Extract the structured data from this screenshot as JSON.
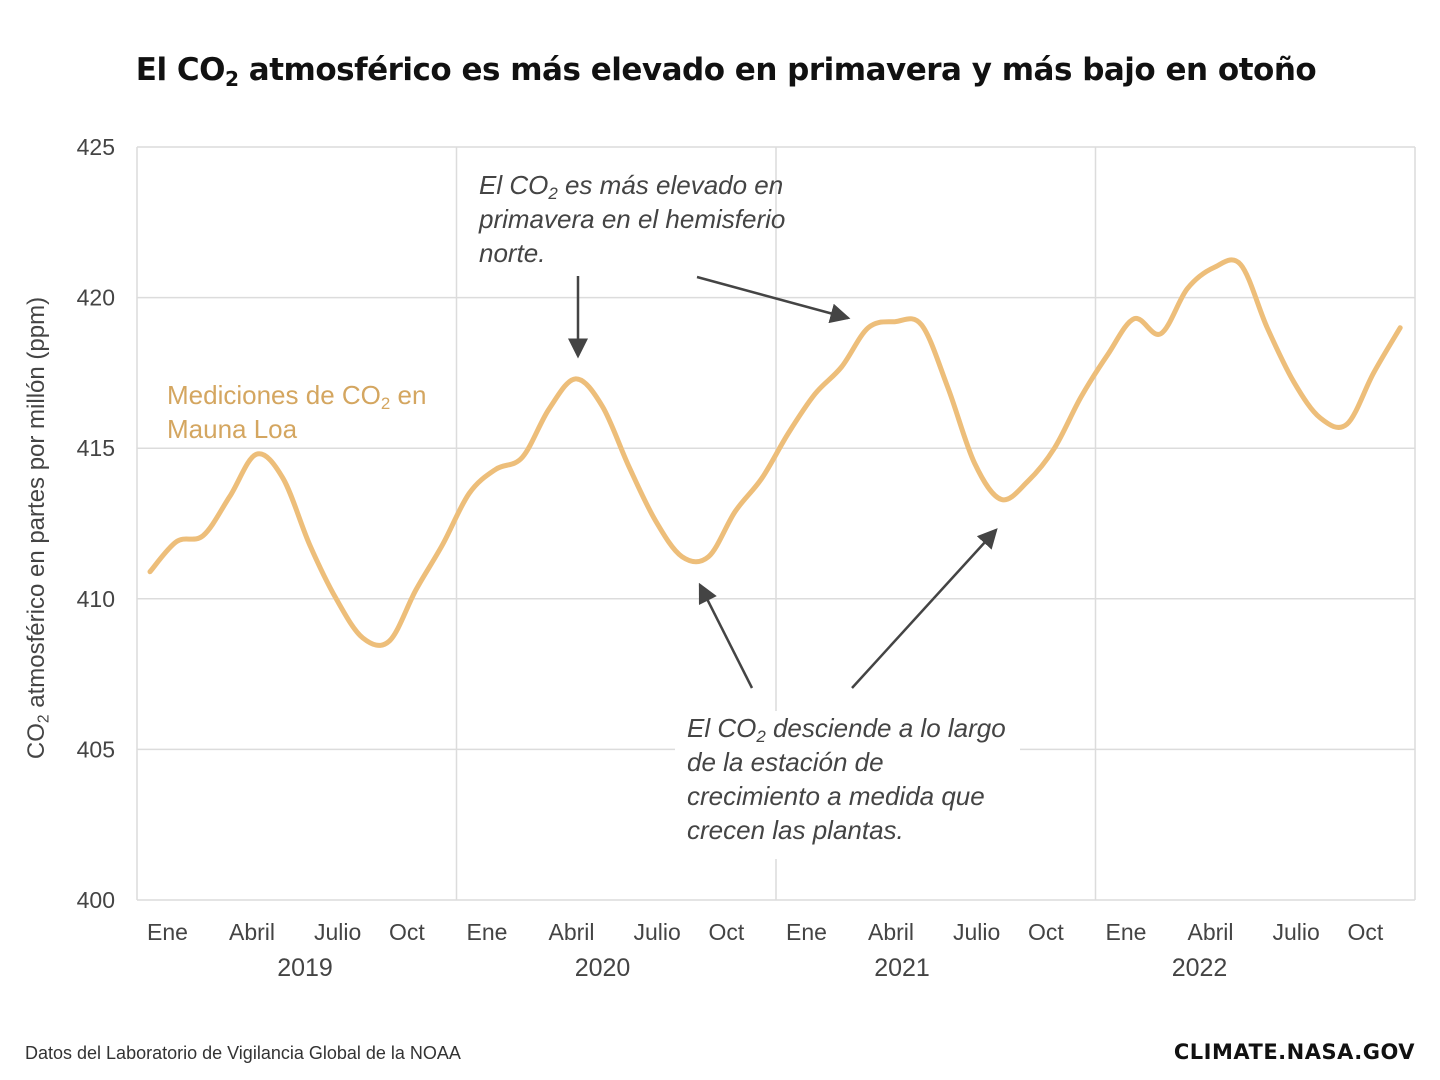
{
  "chart_data": {
    "type": "line",
    "title": {
      "pre": "El CO",
      "sub": "2",
      "post": " atmosférico es más elevado en primavera y más bajo en otoño"
    },
    "ylabel": {
      "pre": "CO",
      "sub": "2",
      "post": " atmosférico en partes por millón (ppm)"
    },
    "ylim": [
      400,
      425
    ],
    "yticks": [
      400,
      405,
      410,
      415,
      420,
      425
    ],
    "month_ticks": [
      "Ene",
      "Abril",
      "Julio",
      "Oct"
    ],
    "years": [
      "2019",
      "2020",
      "2021",
      "2022"
    ],
    "grid": true,
    "series": [
      {
        "name": {
          "pre": "Mediciones de CO",
          "sub": "2",
          "post": " en",
          "line2": "Mauna Loa"
        },
        "color": "#EDBE7A",
        "values": [
          410.9,
          411.9,
          412.1,
          413.4,
          414.8,
          414.0,
          411.8,
          410.0,
          408.7,
          408.6,
          410.3,
          411.8,
          413.5,
          414.3,
          414.7,
          416.3,
          417.3,
          416.4,
          414.4,
          412.6,
          411.4,
          411.4,
          412.9,
          414.0,
          415.5,
          416.8,
          417.7,
          419.0,
          419.2,
          419.1,
          417.0,
          414.5,
          413.3,
          413.9,
          415.0,
          416.7,
          418.1,
          419.3,
          418.8,
          420.3,
          421.0,
          421.1,
          419.0,
          417.2,
          416.0,
          415.8,
          417.5,
          419.0
        ]
      }
    ],
    "annotations": [
      {
        "pre": "El CO",
        "sub": "2",
        "post": " es más elevado en",
        "lines": [
          "primavera en el hemisferio",
          "norte."
        ]
      },
      {
        "pre": "El CO",
        "sub": "2",
        "post": " desciende a lo largo",
        "lines": [
          "de la estación de",
          "crecimiento a medida que",
          "crecen las plantas."
        ]
      }
    ],
    "annotation_color": "#444444"
  },
  "footer": {
    "source": "Datos del Laboratorio de Vigilancia Global de la NOAA",
    "logo": "CLIMATE.NASA.GOV"
  }
}
